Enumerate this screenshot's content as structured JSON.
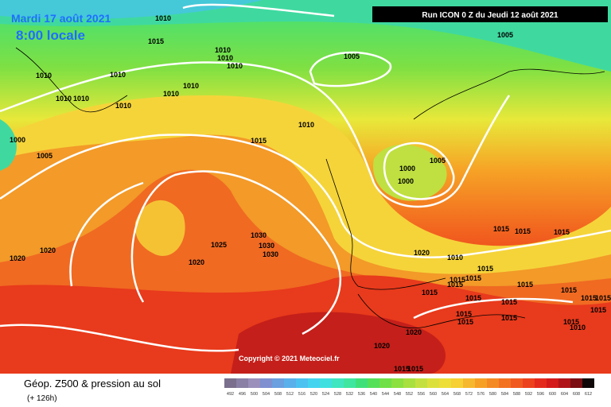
{
  "header": {
    "date": "Mardi 17 août 2021",
    "time": "8:00 locale",
    "run": "Run ICON 0 Z du Jeudi 12 août 2021"
  },
  "copyright": "Copyright © 2021 Meteociel.fr",
  "footer": {
    "title": "Géop. Z500 & pression au sol",
    "lead": "(+ 126h)"
  },
  "legend": {
    "levels": [
      492,
      496,
      500,
      504,
      508,
      512,
      516,
      520,
      524,
      528,
      532,
      536,
      540,
      544,
      548,
      552,
      556,
      560,
      564,
      568,
      572,
      576,
      580,
      584,
      588,
      592,
      596,
      600,
      604,
      608,
      612
    ]
  },
  "isobar_labels": [
    "1010",
    "1015",
    "1010",
    "1010",
    "1010",
    "1010",
    "1010",
    "1010",
    "1010",
    "1010",
    "1010",
    "1010",
    "1000",
    "1005",
    "1010",
    "1015",
    "1005",
    "1005",
    "1000",
    "1000",
    "1005",
    "1025",
    "1030",
    "1030",
    "1030",
    "1020",
    "1020",
    "1020",
    "1020",
    "1010",
    "1015",
    "1015",
    "1015",
    "1015",
    "1015",
    "1015",
    "1015",
    "1015",
    "1015",
    "1015",
    "1015",
    "1015",
    "1015",
    "1015",
    "1015",
    "1015",
    "1015",
    "1015",
    "1015",
    "1010",
    "1020",
    "1020",
    "1015",
    "1015"
  ]
}
